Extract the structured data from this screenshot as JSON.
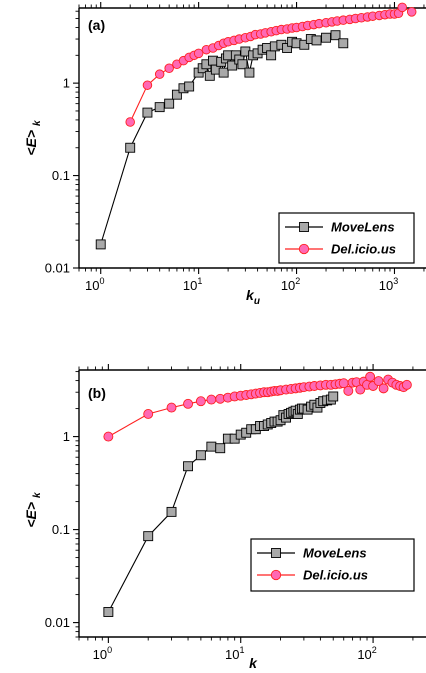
{
  "chart_data": [
    {
      "type": "scatter",
      "panel_label": "(a)",
      "xlabel": "k",
      "xlabel_sub": "u",
      "ylabel": "<E>",
      "ylabel_sub": "k",
      "xscale": "log",
      "yscale": "log",
      "xlim": [
        0.6,
        2200
      ],
      "ylim": [
        0.01,
        6.5
      ],
      "xticks": [
        1,
        10,
        100,
        1000
      ],
      "xtick_labels": [
        "10",
        "10",
        "10",
        "10"
      ],
      "xtick_exps": [
        "0",
        "1",
        "2",
        "3"
      ],
      "yticks": [
        0.01,
        0.1,
        1
      ],
      "ytick_labels": [
        "0.01",
        "0.1",
        "1"
      ],
      "legend_position": "bottom-right",
      "series": [
        {
          "name": "MoveLens",
          "color": "#000000",
          "marker": "square",
          "marker_fill": "#a9a9a9",
          "x": [
            1,
            2,
            3,
            4,
            5,
            6,
            7,
            8,
            10,
            11,
            12,
            13,
            14,
            15,
            17,
            18,
            19,
            20,
            22,
            24,
            26,
            28,
            30,
            33,
            36,
            40,
            45,
            50,
            55,
            60,
            70,
            80,
            90,
            100,
            120,
            140,
            160,
            200,
            250,
            300
          ],
          "y": [
            0.018,
            0.2,
            0.48,
            0.55,
            0.6,
            0.75,
            0.88,
            0.92,
            1.3,
            1.45,
            1.6,
            1.2,
            1.75,
            1.4,
            1.7,
            1.3,
            1.85,
            2.0,
            1.55,
            2.0,
            1.8,
            1.6,
            2.2,
            1.3,
            2.0,
            2.1,
            2.3,
            2.4,
            2.0,
            2.5,
            2.6,
            2.4,
            2.8,
            2.7,
            2.6,
            3.0,
            2.9,
            3.1,
            3.3,
            2.7
          ]
        },
        {
          "name": "Del.icio.us",
          "color": "#ff2020",
          "marker": "circle",
          "marker_fill": "#ff69b4",
          "x": [
            2,
            3,
            4,
            5,
            6,
            7,
            8,
            9,
            10,
            12,
            14,
            16,
            18,
            20,
            23,
            26,
            30,
            34,
            38,
            43,
            48,
            55,
            62,
            70,
            80,
            90,
            100,
            115,
            130,
            150,
            170,
            200,
            230,
            260,
            300,
            350,
            400,
            460,
            530,
            600,
            700,
            800,
            900,
            1000,
            1100,
            1200,
            1500
          ],
          "y": [
            0.38,
            0.95,
            1.25,
            1.45,
            1.6,
            1.75,
            1.9,
            2.0,
            2.1,
            2.3,
            2.4,
            2.55,
            2.7,
            2.8,
            2.9,
            3.0,
            3.1,
            3.2,
            3.35,
            3.4,
            3.5,
            3.6,
            3.7,
            3.8,
            3.85,
            3.95,
            4.0,
            4.1,
            4.2,
            4.3,
            4.4,
            4.5,
            4.6,
            4.7,
            4.8,
            4.9,
            5.0,
            5.1,
            5.2,
            5.3,
            5.4,
            5.5,
            5.6,
            5.6,
            5.7,
            6.6,
            5.9
          ]
        }
      ]
    },
    {
      "type": "scatter",
      "panel_label": "(b)",
      "xlabel": "k",
      "xlabel_sub": "",
      "ylabel": "<E>",
      "ylabel_sub": "k",
      "xscale": "log",
      "yscale": "log",
      "xlim": [
        0.6,
        260
      ],
      "ylim": [
        0.007,
        5.2
      ],
      "xticks": [
        1,
        10,
        100
      ],
      "xtick_labels": [
        "10",
        "10",
        "10"
      ],
      "xtick_exps": [
        "0",
        "1",
        "2"
      ],
      "yticks": [
        0.01,
        0.1,
        1
      ],
      "ytick_labels": [
        "0.01",
        "0.1",
        "1"
      ],
      "legend_position": "bottom-right",
      "series": [
        {
          "name": "MoveLens",
          "color": "#000000",
          "marker": "square",
          "marker_fill": "#a9a9a9",
          "x": [
            1,
            2,
            3,
            4,
            5,
            6,
            7,
            8,
            9,
            10,
            11,
            12,
            13,
            14,
            15,
            16,
            17,
            18,
            19,
            20,
            21,
            22,
            23,
            24,
            25,
            26,
            27,
            28,
            29,
            30,
            32,
            34,
            36,
            38,
            40,
            42,
            45,
            48,
            50
          ],
          "y": [
            0.013,
            0.085,
            0.155,
            0.48,
            0.63,
            0.78,
            0.75,
            0.95,
            0.95,
            1.05,
            1.1,
            1.2,
            1.2,
            1.3,
            1.3,
            1.35,
            1.4,
            1.45,
            1.45,
            1.5,
            1.7,
            1.6,
            1.75,
            1.8,
            1.85,
            1.9,
            1.75,
            1.95,
            2.0,
            2.0,
            1.95,
            2.1,
            2.2,
            2.05,
            2.3,
            2.4,
            2.45,
            2.5,
            2.7
          ]
        },
        {
          "name": "Del.icio.us",
          "color": "#ff2020",
          "marker": "circle",
          "marker_fill": "#ff69b4",
          "x": [
            1,
            2,
            3,
            4,
            5,
            6,
            7,
            8,
            9,
            10,
            11,
            12,
            13,
            14,
            15,
            16,
            17,
            18,
            19,
            20,
            22,
            24,
            26,
            28,
            30,
            33,
            36,
            40,
            44,
            48,
            52,
            56,
            60,
            65,
            70,
            75,
            80,
            85,
            90,
            95,
            100,
            110,
            120,
            130,
            140,
            150,
            160,
            170,
            180
          ],
          "y": [
            1.0,
            1.75,
            2.05,
            2.25,
            2.4,
            2.5,
            2.55,
            2.62,
            2.7,
            2.75,
            2.8,
            2.85,
            2.9,
            2.95,
            3.0,
            3.0,
            3.05,
            3.1,
            3.1,
            3.15,
            3.2,
            3.25,
            3.3,
            3.35,
            3.4,
            3.45,
            3.5,
            3.55,
            3.6,
            3.6,
            3.65,
            3.7,
            3.75,
            3.1,
            3.8,
            3.85,
            3.2,
            3.9,
            3.6,
            4.4,
            3.5,
            3.95,
            3.3,
            4.1,
            3.8,
            3.6,
            3.5,
            3.4,
            3.6
          ]
        }
      ]
    }
  ]
}
